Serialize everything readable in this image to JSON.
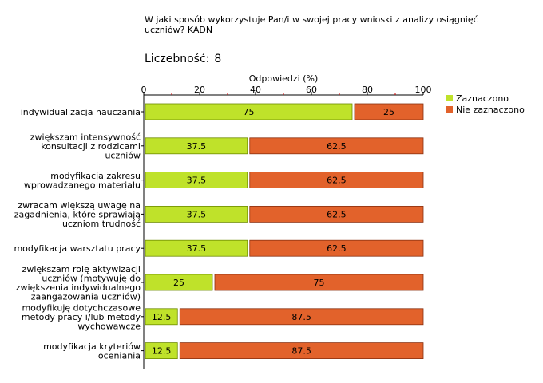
{
  "title": "W jaki sposób wykorzystuje Pan/i w swojej pracy wnioski z analizy osiągnięć\nuczniów? KADN",
  "count_label": "Liczebność:",
  "count_value": "8",
  "colors": {
    "selected": "#bfe22a",
    "selected_border": "#6e8c00",
    "not_selected": "#e2622b",
    "not_selected_border": "#8a3010",
    "grid": "#cc0000"
  },
  "chart_data": {
    "type": "bar",
    "orientation": "horizontal",
    "stacked": true,
    "xlabel": "Odpowiedzi (%)",
    "xlim": [
      0,
      100
    ],
    "ticks": [
      0,
      20,
      40,
      60,
      80,
      100
    ],
    "categories": [
      "indywidualizacja nauczania",
      "zwiększam intensywność konsultacji z rodzicami uczniów",
      "modyfikacja zakresu wprowadzanego materiału",
      "zwracam większą uwagę na zagadnienia, które sprawiają uczniom trudność",
      "modyfikacja warsztatu pracy",
      "zwiększam rolę aktywizacji uczniów (motywuję do zwiększenia indywidualnego zaangażowania uczniów)",
      "modyfikuję dotychczasowe metody pracy i/lub metody wychowawcze",
      "modyfikacja kryteriów oceniania"
    ],
    "category_lines": [
      [
        "indywidualizacja nauczania"
      ],
      [
        "zwiększam intensywność",
        "konsultacji z rodzicami",
        "uczniów"
      ],
      [
        "modyfikacja zakresu",
        "wprowadzanego materiału"
      ],
      [
        "zwracam większą uwagę na",
        "zagadnienia, które sprawiają",
        "uczniom trudność"
      ],
      [
        "modyfikacja warsztatu pracy"
      ],
      [
        "zwiększam rolę aktywizacji",
        "uczniów (motywuję do",
        "zwiększenia indywidualnego",
        "zaangażowania uczniów)"
      ],
      [
        "modyfikuję dotychczasowe",
        "metody pracy i/lub metody",
        "wychowawcze"
      ],
      [
        "modyfikacja kryteriów",
        "oceniania"
      ]
    ],
    "series": [
      {
        "name": "Zaznaczono",
        "values": [
          75,
          37.5,
          37.5,
          37.5,
          37.5,
          25,
          12.5,
          12.5
        ]
      },
      {
        "name": "Nie zaznaczono",
        "values": [
          25,
          62.5,
          62.5,
          62.5,
          62.5,
          75,
          87.5,
          87.5
        ]
      }
    ],
    "value_labels": {
      "selected": [
        "75",
        "37.5",
        "37.5",
        "37.5",
        "37.5",
        "25",
        "12.5",
        "12.5"
      ],
      "not_selected": [
        "25",
        "62.5",
        "62.5",
        "62.5",
        "62.5",
        "75",
        "87.5",
        "87.5"
      ]
    },
    "legend": "right"
  }
}
